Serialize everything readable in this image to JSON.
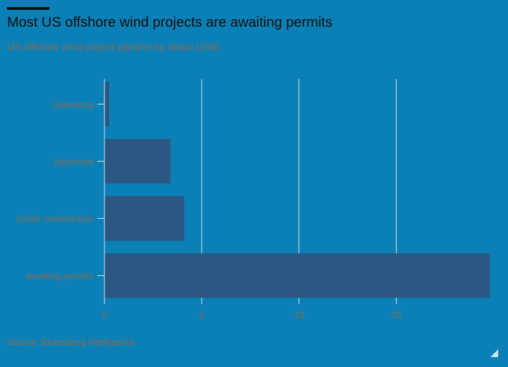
{
  "title": "Most US offshore wind projects are awaiting permits",
  "subtitle": "US offshore wind project pipeline by status (GW)",
  "source": "Source: Bloomberg Intelligence",
  "colors": {
    "background": "#0a80b6",
    "bar": "#2b5883",
    "grid": "#d6e6f0",
    "label": "#8a6a52"
  },
  "chart_data": {
    "type": "bar",
    "orientation": "horizontal",
    "categories": [
      "Operating",
      "Approved",
      "Under construction",
      "Awaiting permits"
    ],
    "values": [
      0.25,
      3.4,
      4.1,
      19.8
    ],
    "xlim": [
      0,
      19.8
    ],
    "xticks": [
      0,
      5,
      10,
      15
    ],
    "grid": true
  }
}
